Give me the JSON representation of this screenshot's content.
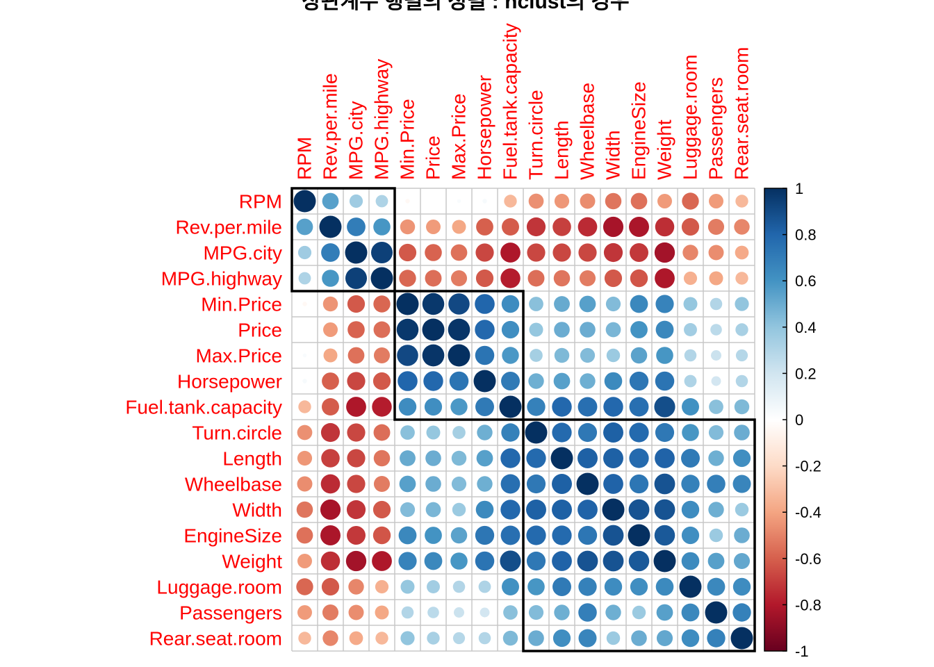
{
  "chart_data": {
    "type": "heatmap",
    "title": "상관계수 행렬의 정렬 : hclust의 경우",
    "variables": [
      "RPM",
      "Rev.per.mile",
      "MPG.city",
      "MPG.highway",
      "Min.Price",
      "Price",
      "Max.Price",
      "Horsepower",
      "Fuel.tank.capacity",
      "Turn.circle",
      "Length",
      "Wheelbase",
      "Width",
      "EngineSize",
      "Weight",
      "Luggage.room",
      "Passengers",
      "Rear.seat.room"
    ],
    "values": [
      [
        1.0,
        0.55,
        0.36,
        0.31,
        -0.04,
        -0.0,
        0.03,
        0.04,
        -0.33,
        -0.46,
        -0.44,
        -0.47,
        -0.54,
        -0.55,
        -0.43,
        -0.58,
        -0.43,
        -0.33
      ],
      [
        0.55,
        1.0,
        0.7,
        0.59,
        -0.45,
        -0.43,
        -0.39,
        -0.6,
        -0.61,
        -0.72,
        -0.69,
        -0.75,
        -0.83,
        -0.82,
        -0.74,
        -0.62,
        -0.52,
        -0.49
      ],
      [
        0.36,
        0.7,
        1.0,
        0.94,
        -0.62,
        -0.59,
        -0.55,
        -0.67,
        -0.81,
        -0.67,
        -0.67,
        -0.67,
        -0.72,
        -0.71,
        -0.84,
        -0.49,
        -0.47,
        -0.38
      ],
      [
        0.31,
        0.59,
        0.94,
        1.0,
        -0.58,
        -0.56,
        -0.52,
        -0.62,
        -0.79,
        -0.56,
        -0.54,
        -0.52,
        -0.62,
        -0.63,
        -0.81,
        -0.36,
        -0.39,
        -0.33
      ],
      [
        -0.04,
        -0.45,
        -0.62,
        -0.58,
        1.0,
        0.97,
        0.91,
        0.8,
        0.63,
        0.42,
        0.51,
        0.55,
        0.44,
        0.65,
        0.67,
        0.39,
        0.3,
        0.4
      ],
      [
        -0.0,
        -0.43,
        -0.59,
        -0.56,
        0.97,
        1.0,
        0.98,
        0.79,
        0.62,
        0.39,
        0.5,
        0.5,
        0.46,
        0.6,
        0.65,
        0.35,
        0.27,
        0.33
      ],
      [
        0.03,
        -0.39,
        -0.55,
        -0.52,
        0.91,
        0.98,
        1.0,
        0.74,
        0.58,
        0.34,
        0.45,
        0.44,
        0.37,
        0.54,
        0.59,
        0.3,
        0.22,
        0.29
      ],
      [
        0.04,
        -0.6,
        -0.67,
        -0.62,
        0.8,
        0.79,
        0.74,
        1.0,
        0.71,
        0.49,
        0.55,
        0.49,
        0.64,
        0.73,
        0.74,
        0.31,
        0.19,
        0.3
      ],
      [
        -0.33,
        -0.61,
        -0.81,
        -0.79,
        0.63,
        0.62,
        0.58,
        0.71,
        1.0,
        0.68,
        0.79,
        0.76,
        0.79,
        0.76,
        0.89,
        0.61,
        0.42,
        0.45
      ],
      [
        -0.46,
        -0.72,
        -0.67,
        -0.56,
        0.42,
        0.39,
        0.34,
        0.49,
        0.68,
        1.0,
        0.78,
        0.72,
        0.82,
        0.78,
        0.72,
        0.59,
        0.44,
        0.5
      ],
      [
        -0.44,
        -0.69,
        -0.67,
        -0.54,
        0.51,
        0.5,
        0.45,
        0.55,
        0.79,
        0.78,
        1.0,
        0.82,
        0.82,
        0.78,
        0.81,
        0.71,
        0.49,
        0.62
      ],
      [
        -0.47,
        -0.75,
        -0.67,
        -0.52,
        0.55,
        0.5,
        0.44,
        0.49,
        0.76,
        0.72,
        0.82,
        1.0,
        0.81,
        0.73,
        0.87,
        0.68,
        0.69,
        0.66
      ],
      [
        -0.54,
        -0.83,
        -0.72,
        -0.62,
        0.44,
        0.46,
        0.37,
        0.64,
        0.79,
        0.82,
        0.82,
        0.81,
        1.0,
        0.87,
        0.87,
        0.63,
        0.49,
        0.37
      ],
      [
        -0.55,
        -0.82,
        -0.71,
        -0.63,
        0.65,
        0.6,
        0.54,
        0.73,
        0.76,
        0.78,
        0.78,
        0.73,
        0.87,
        1.0,
        0.85,
        0.62,
        0.37,
        0.5
      ],
      [
        -0.43,
        -0.74,
        -0.84,
        -0.81,
        0.67,
        0.65,
        0.59,
        0.74,
        0.89,
        0.72,
        0.81,
        0.87,
        0.87,
        0.85,
        1.0,
        0.64,
        0.55,
        0.52
      ],
      [
        -0.58,
        -0.62,
        -0.49,
        -0.36,
        0.39,
        0.35,
        0.3,
        0.31,
        0.61,
        0.59,
        0.71,
        0.68,
        0.63,
        0.62,
        0.64,
        1.0,
        0.65,
        0.63
      ],
      [
        -0.43,
        -0.52,
        -0.47,
        -0.39,
        0.3,
        0.27,
        0.22,
        0.19,
        0.42,
        0.44,
        0.49,
        0.69,
        0.49,
        0.37,
        0.55,
        0.65,
        1.0,
        0.68
      ],
      [
        -0.33,
        -0.49,
        -0.38,
        -0.33,
        0.4,
        0.33,
        0.29,
        0.3,
        0.45,
        0.5,
        0.62,
        0.66,
        0.37,
        0.5,
        0.52,
        0.63,
        0.68,
        1.0
      ]
    ],
    "clusters": [
      [
        0,
        3
      ],
      [
        4,
        8
      ],
      [
        9,
        17
      ]
    ],
    "value_range": [
      -1,
      1
    ],
    "colorbar_ticks": [
      "1",
      "0.8",
      "0.6",
      "0.4",
      "0.2",
      "0",
      "-0.2",
      "-0.4",
      "-0.6",
      "-0.8",
      "-1"
    ],
    "colors": {
      "label": "#ff0000",
      "grid": "#c8c8c8",
      "cluster_border": "#000000",
      "palette": [
        "#67001f",
        "#b2182b",
        "#d6604d",
        "#f4a582",
        "#fddbc7",
        "#ffffff",
        "#d1e5f0",
        "#92c5de",
        "#4393c3",
        "#2166ac",
        "#053061"
      ]
    }
  }
}
